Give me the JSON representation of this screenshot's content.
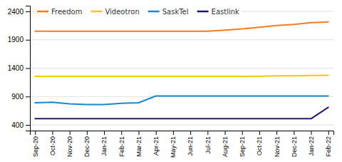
{
  "chart_data": {
    "type": "line",
    "categories": [
      "Sep-20",
      "Oct-20",
      "Nov-20",
      "Dec-20",
      "Jan-21",
      "Feb-21",
      "Mar-21",
      "Apr-21",
      "May-21",
      "Jun-21",
      "Jul-21",
      "Aug-21",
      "Sep-21",
      "Oct-21",
      "Nov-21",
      "Dec-21",
      "Jan-22",
      "Feb-22"
    ],
    "series": [
      {
        "name": "Freedom",
        "color": "#F57C20",
        "values": [
          2050,
          2050,
          2050,
          2050,
          2050,
          2050,
          2050,
          2050,
          2050,
          2050,
          2050,
          2070,
          2090,
          2120,
          2150,
          2170,
          2200,
          2215
        ]
      },
      {
        "name": "Videotron",
        "color": "#F5C800",
        "values": [
          1255,
          1255,
          1255,
          1255,
          1255,
          1255,
          1255,
          1255,
          1255,
          1255,
          1255,
          1255,
          1255,
          1260,
          1265,
          1265,
          1270,
          1275
        ]
      },
      {
        "name": "SaskTel",
        "color": "#1B87C8",
        "values": [
          790,
          800,
          770,
          760,
          760,
          780,
          790,
          910,
          910,
          910,
          910,
          910,
          910,
          910,
          910,
          910,
          910,
          910
        ]
      },
      {
        "name": "Eastlink",
        "color": "#1E1A6E",
        "values": [
          510,
          510,
          510,
          510,
          510,
          510,
          510,
          510,
          510,
          510,
          510,
          510,
          510,
          510,
          510,
          510,
          510,
          710
        ]
      }
    ],
    "ylim": [
      300,
      2500
    ],
    "yticks": [
      400,
      900,
      1400,
      1900,
      2400
    ],
    "grid": true,
    "legend": "upper left"
  }
}
